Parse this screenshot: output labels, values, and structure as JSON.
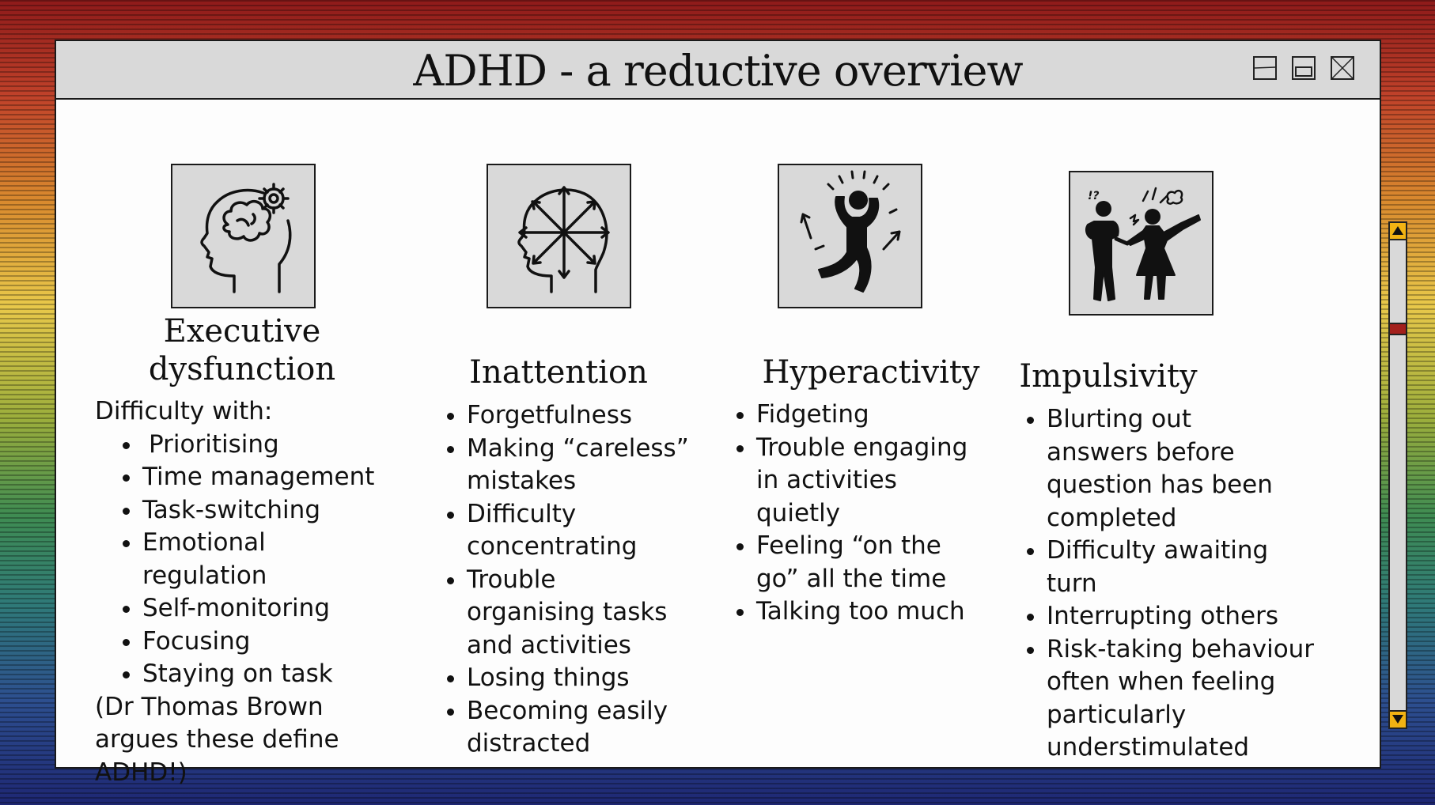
{
  "window": {
    "title": "ADHD - a reductive overview",
    "controls": [
      "minimize-icon",
      "maximize-icon",
      "close-icon"
    ]
  },
  "columns": [
    {
      "icon": "head-gear-brain-icon",
      "heading_line1": "Executive",
      "heading_line2": "dysfunction",
      "intro": "Difficulty with:",
      "items": [
        "Prioritising",
        "Time management",
        "Task-switching",
        "Emotional regulation",
        "Self-monitoring",
        "Focusing",
        "Staying on task"
      ],
      "note": "(Dr Thomas Brown argues these define ADHD!)"
    },
    {
      "icon": "head-scattered-arrows-icon",
      "heading": "Inattention",
      "items": [
        "Forgetfulness",
        "Making “careless” mistakes",
        "Difficulty concentrating",
        "Trouble organising tasks and activities",
        "Losing things",
        "Becoming easily distracted"
      ]
    },
    {
      "icon": "jumping-person-icon",
      "heading": "Hyperactivity",
      "items": [
        "Fidgeting",
        "Trouble engaging in activities quietly",
        "Feeling “on the go” all the time",
        "Talking too much"
      ]
    },
    {
      "icon": "arguing-people-icon",
      "heading": "Impulsivity",
      "items": [
        "Blurting out answers before question has been completed",
        "Difficulty awaiting turn",
        "Interrupting others",
        "Risk-taking behaviour often when feeling particularly understimulated"
      ]
    }
  ],
  "scrollbar": {
    "position": 0.18
  },
  "colors": {
    "titlebar": "#d9d9d9",
    "scroll_arrow": "#f2b313",
    "scroll_thumb": "#a3201c"
  }
}
